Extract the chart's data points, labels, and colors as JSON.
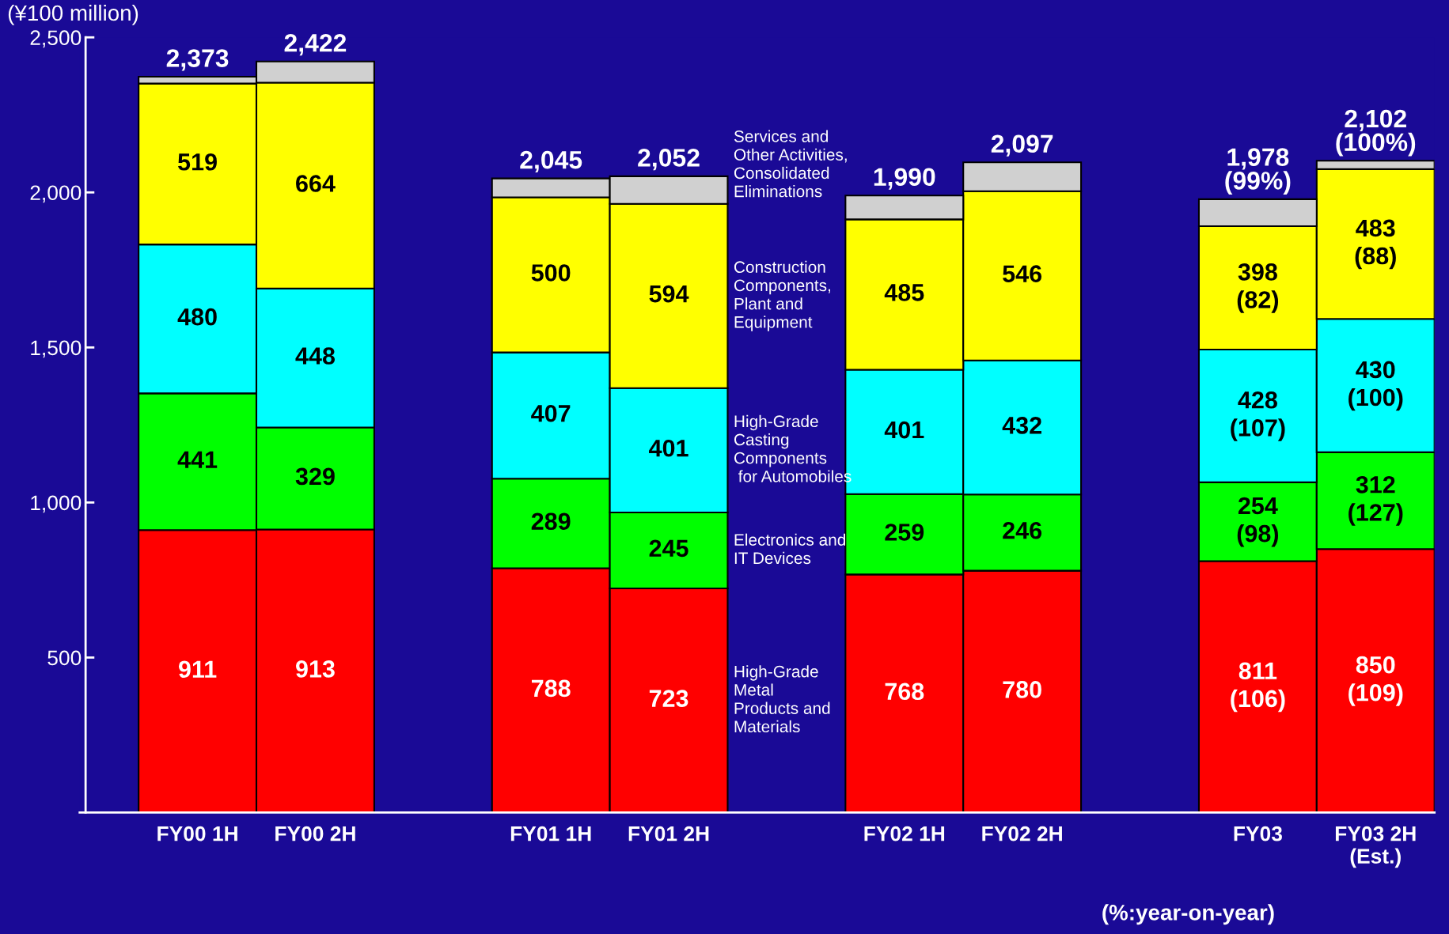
{
  "chart_data": {
    "type": "bar",
    "stacked": true,
    "ylabel": "(¥100 million)",
    "categories": [
      "FY00 1H",
      "FY00 2H",
      null,
      "FY01 1H",
      "FY01 2H",
      null,
      "FY02 1H",
      "FY02 2H",
      null,
      "FY03",
      "FY03 2H\n(Est.)"
    ],
    "series": [
      {
        "name": "High-Grade\nMetal\nProducts and\nMaterials",
        "color": "#ff0000",
        "values": [
          911,
          913,
          null,
          788,
          723,
          null,
          768,
          780,
          null,
          811,
          850
        ],
        "value_labels": [
          "911",
          "913",
          null,
          "788",
          "723",
          null,
          "768",
          "780",
          null,
          "811\n(106)",
          "850\n(109)"
        ]
      },
      {
        "name": "Electronics and\nIT Devices",
        "color": "#00ff00",
        "values": [
          441,
          329,
          null,
          289,
          245,
          null,
          259,
          246,
          null,
          254,
          312
        ],
        "value_labels": [
          "441",
          "329",
          null,
          "289",
          "245",
          null,
          "259",
          "246",
          null,
          "254\n(98)",
          "312\n(127)"
        ]
      },
      {
        "name": "High-Grade\nCasting\nComponents\n for Automobiles",
        "color": "#00ffff",
        "values": [
          480,
          448,
          null,
          407,
          401,
          null,
          401,
          432,
          null,
          428,
          430
        ],
        "value_labels": [
          "480",
          "448",
          null,
          "407",
          "401",
          null,
          "401",
          "432",
          null,
          "428\n(107)",
          "430\n(100)"
        ]
      },
      {
        "name": "Construction\nComponents,\nPlant and\nEquipment",
        "color": "#ffff00",
        "values": [
          519,
          664,
          null,
          500,
          594,
          null,
          485,
          546,
          null,
          398,
          483
        ],
        "value_labels": [
          "519",
          "664",
          null,
          "500",
          "594",
          null,
          "485",
          "546",
          null,
          "398\n(82)",
          "483\n(88)"
        ]
      },
      {
        "name": "Services and\nOther Activities,\nConsolidated\nEliminations",
        "color": "#d0d0d0",
        "values": [
          22,
          68,
          null,
          61,
          89,
          null,
          77,
          93,
          null,
          87,
          27
        ]
      }
    ],
    "totals": [
      "2,373",
      "2,422",
      null,
      "2,045",
      "2,052",
      null,
      "1,990",
      "2,097",
      null,
      "1,978\n(99%)",
      "2,102\n(100%)"
    ],
    "ylim": [
      0,
      2500
    ],
    "yticks": [
      500,
      {
        "value": 1000,
        "label": "1,000"
      },
      {
        "value": 1500,
        "label": "1,500"
      },
      {
        "value": 2000,
        "label": "2,000"
      },
      {
        "value": 2500,
        "label": "2,500"
      }
    ],
    "grid": false,
    "legend": false,
    "annotations": [
      "(%:year-on-year)"
    ]
  }
}
